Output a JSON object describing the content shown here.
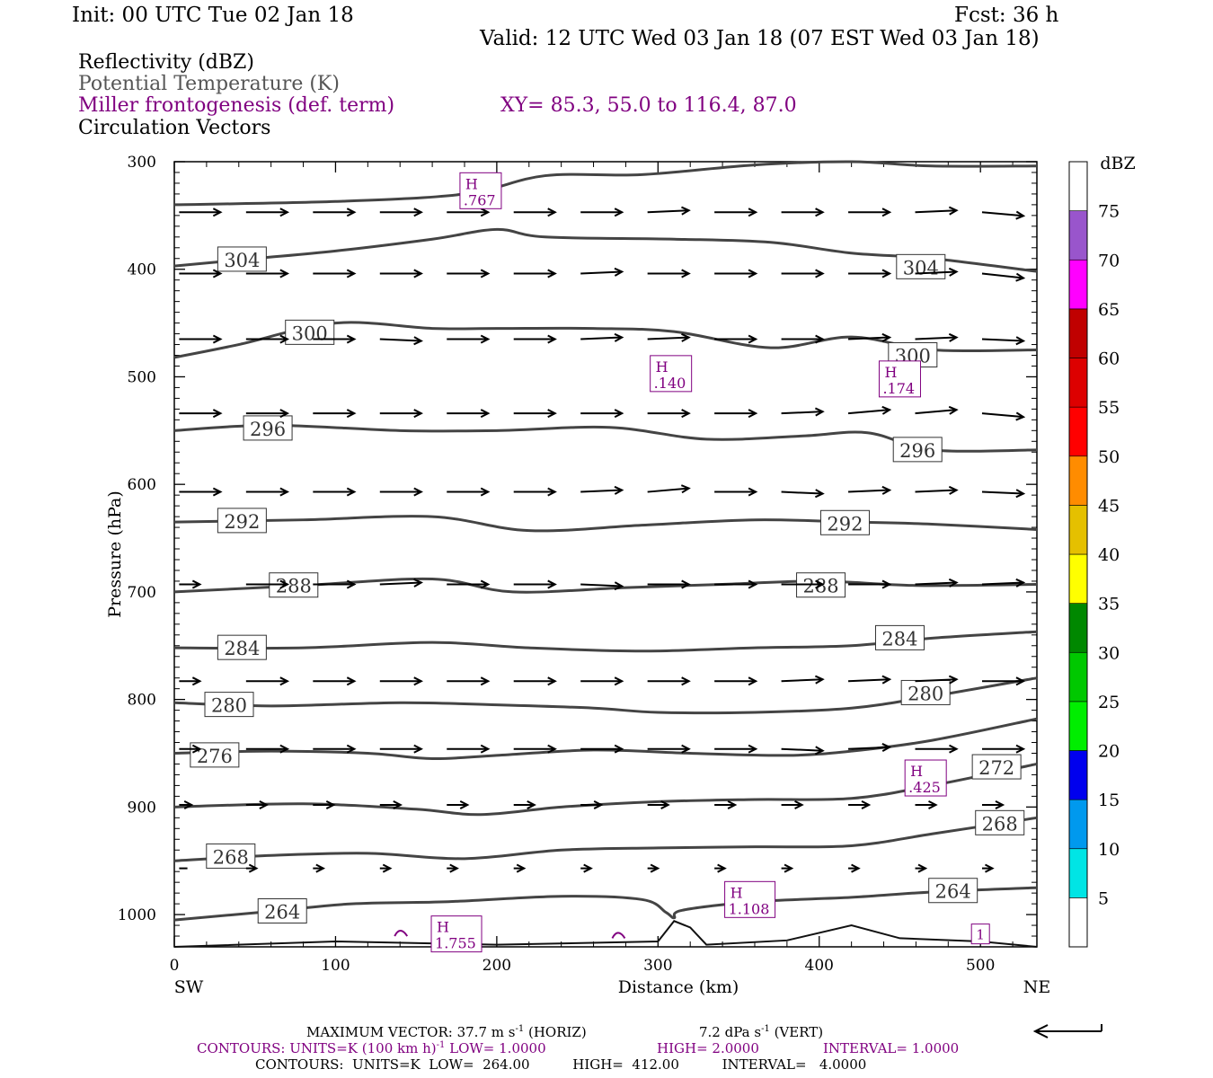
{
  "header": {
    "init": "Init: 00 UTC Tue 02 Jan 18",
    "fcst": "Fcst:   36 h",
    "valid": "Valid: 12 UTC Wed 03 Jan 18 (07 EST Wed 03 Jan 18)"
  },
  "legend": {
    "reflectivity": "Reflectivity (dBZ)",
    "theta": "Potential Temperature (K)",
    "frontogenesis": "Miller frontogenesis (def. term)",
    "xy": "XY=  85.3, 55.0 to 116.4, 87.0",
    "vectors": "Circulation Vectors"
  },
  "colors": {
    "theta": "#444444",
    "frontogenesis": "#800080",
    "vector": "#000000"
  },
  "footer": {
    "max_vector_a": "MAXIMUM VECTOR:  37.7 m s",
    "max_vector_b": " (HORIZ)",
    "max_vector_c": "7.2 dPa s",
    "max_vector_d": " (VERT)",
    "sup": "-1",
    "contours1_a": "CONTOURS:  UNITS=K (100 km h)",
    "contours1_b": "  LOW=  1.0000",
    "contours1_c": "HIGH=  2.0000",
    "contours1_d": "INTERVAL=   1.0000",
    "contours2": "CONTOURS:  UNITS=K  LOW=  264.00          HIGH=  412.00          INTERVAL=   4.0000"
  },
  "chart_data": {
    "type": "cross-section",
    "xlabel": "Distance (km)",
    "ylabel": "Pressure (hPa)",
    "xlim": [
      0,
      535
    ],
    "ylim": [
      1030,
      300
    ],
    "x_ticks": [
      "0",
      "100",
      "200",
      "300",
      "400",
      "500"
    ],
    "y_ticks": [
      "300",
      "400",
      "500",
      "600",
      "700",
      "800",
      "900",
      "1000"
    ],
    "x_end_labels": {
      "left": "SW",
      "right": "NE"
    },
    "colorbar": {
      "unit": "dBZ",
      "levels": [
        "5",
        "10",
        "15",
        "20",
        "25",
        "30",
        "35",
        "40",
        "45",
        "50",
        "55",
        "60",
        "65",
        "70",
        "75"
      ],
      "colors": [
        "#ffffff",
        "#00e5e5",
        "#0099ee",
        "#0000ee",
        "#00ee00",
        "#00c800",
        "#008800",
        "#ffff00",
        "#e5c000",
        "#ff8c00",
        "#ff0000",
        "#dd0000",
        "#c00000",
        "#ff00ff",
        "#9955cc",
        "#ffffff"
      ]
    },
    "theta_contours": [
      {
        "label": "264",
        "points": [
          [
            0,
            1005
          ],
          [
            60,
            997
          ],
          [
            110,
            990
          ],
          [
            170,
            988
          ],
          [
            240,
            983
          ],
          [
            290,
            986
          ],
          [
            305,
            998
          ],
          [
            310,
            1003
          ],
          [
            315,
            996
          ],
          [
            360,
            988
          ],
          [
            420,
            984
          ],
          [
            470,
            979
          ],
          [
            535,
            975
          ]
        ],
        "labels_at": [
          [
            67,
            997
          ],
          [
            483,
            978
          ]
        ]
      },
      {
        "label": "268",
        "points": [
          [
            0,
            950
          ],
          [
            60,
            945
          ],
          [
            120,
            943
          ],
          [
            180,
            948
          ],
          [
            240,
            940
          ],
          [
            300,
            938
          ],
          [
            360,
            937
          ],
          [
            420,
            936
          ],
          [
            470,
            925
          ],
          [
            535,
            910
          ]
        ],
        "labels_at": [
          [
            35,
            946
          ],
          [
            512,
            915
          ]
        ]
      },
      {
        "label": "272",
        "points": [
          [
            0,
            900
          ],
          [
            80,
            897
          ],
          [
            150,
            902
          ],
          [
            190,
            907
          ],
          [
            240,
            900
          ],
          [
            300,
            895
          ],
          [
            360,
            893
          ],
          [
            420,
            892
          ],
          [
            470,
            880
          ],
          [
            535,
            860
          ]
        ],
        "labels_at": [
          [
            510,
            863
          ]
        ]
      },
      {
        "label": "276",
        "points": [
          [
            0,
            850
          ],
          [
            60,
            848
          ],
          [
            120,
            850
          ],
          [
            160,
            855
          ],
          [
            200,
            852
          ],
          [
            260,
            847
          ],
          [
            320,
            850
          ],
          [
            380,
            852
          ],
          [
            420,
            848
          ],
          [
            470,
            838
          ],
          [
            535,
            818
          ]
        ],
        "labels_at": [
          [
            25,
            852
          ]
        ]
      },
      {
        "label": "280",
        "points": [
          [
            0,
            803
          ],
          [
            60,
            806
          ],
          [
            140,
            803
          ],
          [
            200,
            805
          ],
          [
            260,
            808
          ],
          [
            300,
            812
          ],
          [
            360,
            812
          ],
          [
            420,
            808
          ],
          [
            470,
            797
          ],
          [
            535,
            780
          ]
        ],
        "labels_at": [
          [
            34,
            805
          ],
          [
            466,
            794
          ]
        ]
      },
      {
        "label": "284",
        "points": [
          [
            0,
            752
          ],
          [
            80,
            752
          ],
          [
            160,
            747
          ],
          [
            220,
            752
          ],
          [
            290,
            755
          ],
          [
            360,
            752
          ],
          [
            420,
            750
          ],
          [
            470,
            743
          ],
          [
            535,
            737
          ]
        ],
        "labels_at": [
          [
            42,
            752
          ],
          [
            450,
            743
          ]
        ]
      },
      {
        "label": "288",
        "points": [
          [
            0,
            700
          ],
          [
            80,
            694
          ],
          [
            160,
            688
          ],
          [
            210,
            700
          ],
          [
            280,
            696
          ],
          [
            340,
            693
          ],
          [
            400,
            690
          ],
          [
            460,
            694
          ],
          [
            535,
            693
          ]
        ],
        "labels_at": [
          [
            74,
            694
          ],
          [
            401,
            694
          ]
        ]
      },
      {
        "label": "292",
        "points": [
          [
            0,
            635
          ],
          [
            80,
            633
          ],
          [
            160,
            630
          ],
          [
            220,
            643
          ],
          [
            290,
            638
          ],
          [
            360,
            633
          ],
          [
            420,
            635
          ],
          [
            470,
            637
          ],
          [
            535,
            642
          ]
        ],
        "labels_at": [
          [
            42,
            634
          ],
          [
            416,
            636
          ]
        ]
      },
      {
        "label": "296",
        "points": [
          [
            0,
            550
          ],
          [
            60,
            545
          ],
          [
            140,
            550
          ],
          [
            200,
            550
          ],
          [
            270,
            547
          ],
          [
            330,
            558
          ],
          [
            390,
            555
          ],
          [
            430,
            552
          ],
          [
            470,
            568
          ],
          [
            535,
            568
          ]
        ],
        "labels_at": [
          [
            58,
            548
          ],
          [
            461,
            568
          ]
        ]
      },
      {
        "label": "300",
        "points": [
          [
            0,
            482
          ],
          [
            40,
            470
          ],
          [
            100,
            450
          ],
          [
            160,
            455
          ],
          [
            200,
            455
          ],
          [
            260,
            455
          ],
          [
            310,
            458
          ],
          [
            370,
            473
          ],
          [
            420,
            463
          ],
          [
            470,
            475
          ],
          [
            535,
            475
          ]
        ],
        "labels_at": [
          [
            84,
            459
          ],
          [
            458,
            480
          ]
        ]
      },
      {
        "label": "304",
        "points": [
          [
            0,
            397
          ],
          [
            50,
            390
          ],
          [
            100,
            383
          ],
          [
            160,
            372
          ],
          [
            200,
            363
          ],
          [
            230,
            370
          ],
          [
            310,
            372
          ],
          [
            370,
            375
          ],
          [
            420,
            385
          ],
          [
            470,
            390
          ],
          [
            535,
            402
          ]
        ],
        "labels_at": [
          [
            42,
            391
          ],
          [
            463,
            398
          ]
        ]
      },
      {
        "label": "",
        "points": [
          [
            0,
            340
          ],
          [
            100,
            337
          ],
          [
            180,
            330
          ],
          [
            230,
            313
          ],
          [
            290,
            312
          ],
          [
            360,
            303
          ],
          [
            420,
            300
          ],
          [
            470,
            304
          ],
          [
            535,
            304
          ]
        ],
        "labels_at": []
      }
    ],
    "frontogenesis_maxima": [
      {
        "label": "H",
        "value": ".767",
        "x": 190,
        "p": 327
      },
      {
        "label": "H",
        "value": ".140",
        "x": 308,
        "p": 497
      },
      {
        "label": "H",
        "value": ".174",
        "x": 450,
        "p": 502
      },
      {
        "label": "H",
        "value": ".425",
        "x": 466,
        "p": 873
      },
      {
        "label": "H",
        "value": "1.108",
        "x": 357,
        "p": 986
      },
      {
        "label": "H",
        "value": "1.755",
        "x": 175,
        "p": 1018
      },
      {
        "label": "",
        "value": "1",
        "x": 500,
        "p": 1018
      }
    ],
    "terrain": [
      [
        0,
        1030
      ],
      [
        100,
        1025
      ],
      [
        200,
        1028
      ],
      [
        300,
        1025
      ],
      [
        310,
        1006
      ],
      [
        320,
        1012
      ],
      [
        330,
        1028
      ],
      [
        380,
        1024
      ],
      [
        420,
        1010
      ],
      [
        450,
        1022
      ],
      [
        500,
        1025
      ],
      [
        535,
        1030
      ]
    ],
    "vector_rows": [
      {
        "p": 347,
        "u": [
          40,
          40,
          40,
          40,
          40,
          40,
          40,
          40,
          40,
          40,
          40,
          40,
          40,
          40
        ],
        "w": [
          0,
          0,
          0,
          0,
          0,
          0,
          0,
          -2,
          0,
          0,
          0,
          -2,
          4,
          0
        ]
      },
      {
        "p": 404,
        "u": [
          40,
          40,
          40,
          40,
          40,
          40,
          40,
          40,
          40,
          40,
          40,
          40,
          40,
          40
        ],
        "w": [
          0,
          0,
          0,
          0,
          0,
          0,
          -2,
          0,
          0,
          0,
          0,
          -2,
          5,
          0
        ]
      },
      {
        "p": 465,
        "u": [
          40,
          40,
          40,
          40,
          40,
          40,
          40,
          40,
          40,
          40,
          40,
          40,
          40,
          40
        ],
        "w": [
          0,
          0,
          0,
          2,
          0,
          0,
          -2,
          -2,
          0,
          0,
          -2,
          -2,
          2,
          0
        ]
      },
      {
        "p": 534,
        "u": [
          40,
          40,
          40,
          40,
          40,
          40,
          40,
          40,
          40,
          40,
          40,
          40,
          40,
          40
        ],
        "w": [
          0,
          0,
          0,
          0,
          0,
          0,
          0,
          0,
          0,
          -2,
          -4,
          -4,
          4,
          0
        ]
      },
      {
        "p": 607,
        "u": [
          40,
          40,
          40,
          40,
          40,
          40,
          40,
          40,
          40,
          40,
          40,
          40,
          40,
          40
        ],
        "w": [
          0,
          0,
          0,
          0,
          0,
          0,
          -2,
          -4,
          0,
          2,
          -2,
          -2,
          2,
          0
        ]
      },
      {
        "p": 693,
        "u": [
          20,
          40,
          40,
          40,
          40,
          40,
          40,
          40,
          40,
          40,
          40,
          40,
          40,
          40
        ],
        "w": [
          0,
          0,
          0,
          -2,
          0,
          0,
          2,
          0,
          0,
          0,
          0,
          -2,
          -2,
          0
        ]
      },
      {
        "p": 783,
        "u": [
          20,
          40,
          40,
          40,
          40,
          40,
          40,
          40,
          40,
          40,
          40,
          40,
          40,
          40
        ],
        "w": [
          0,
          0,
          0,
          0,
          0,
          0,
          0,
          0,
          0,
          -2,
          -2,
          -2,
          0,
          0
        ]
      },
      {
        "p": 846,
        "u": [
          20,
          40,
          40,
          40,
          40,
          40,
          40,
          40,
          40,
          40,
          40,
          40,
          40,
          40
        ],
        "w": [
          0,
          0,
          0,
          0,
          0,
          0,
          0,
          0,
          0,
          2,
          -2,
          0,
          0,
          0
        ]
      },
      {
        "p": 898,
        "u": [
          12,
          20,
          20,
          20,
          20,
          20,
          20,
          20,
          20,
          20,
          20,
          20,
          20,
          20
        ],
        "w": [
          0,
          0,
          0,
          0,
          0,
          0,
          0,
          0,
          0,
          0,
          0,
          0,
          0,
          0
        ]
      },
      {
        "p": 957,
        "u": [
          8,
          10,
          10,
          10,
          10,
          10,
          10,
          10,
          10,
          10,
          10,
          10,
          10,
          10
        ],
        "w": [
          0,
          0,
          0,
          0,
          0,
          0,
          0,
          0,
          0,
          0,
          0,
          0,
          0,
          0
        ]
      }
    ]
  }
}
